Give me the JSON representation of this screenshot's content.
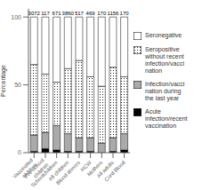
{
  "chart_data": {
    "type": "bar",
    "stacked": true,
    "ylabel": "Percentage",
    "categories": [
      "Vaccinated\nchildren",
      "Pre-school\nchildren",
      "Schoolchildren",
      "All children",
      "Blood donors",
      "HCW",
      "Mothers",
      "All adults",
      "Cord Blood"
    ],
    "series": [
      {
        "name": "Acute\ninfection/recent\nvaccination",
        "color": "#000000",
        "values": [
          1,
          3,
          2,
          1,
          1,
          1,
          0,
          1,
          2
        ]
      },
      {
        "name": "Infection/vacci\nnation during\nthe last year",
        "color": "#aaaaaa",
        "values": [
          12,
          12,
          18,
          13,
          10,
          10,
          7,
          10,
          12
        ]
      },
      {
        "name": "Seropositive\nwithout recent\ninfection/vacci\nnation",
        "color": "#ffffff",
        "marker": "dot",
        "values": [
          52,
          43,
          32,
          48,
          57,
          45,
          42,
          52,
          42
        ]
      },
      {
        "name": "Seronegative",
        "color": "#ffffff",
        "values": [
          35,
          42,
          48,
          38,
          32,
          44,
          51,
          37,
          44
        ]
      }
    ],
    "n": [
      3072,
      117,
      671,
      3860,
      517,
      469,
      170,
      1156,
      170
    ],
    "ylim": [
      0,
      106
    ],
    "yticks": [
      0,
      50,
      100
    ],
    "legend": "right",
    "grid": false
  }
}
